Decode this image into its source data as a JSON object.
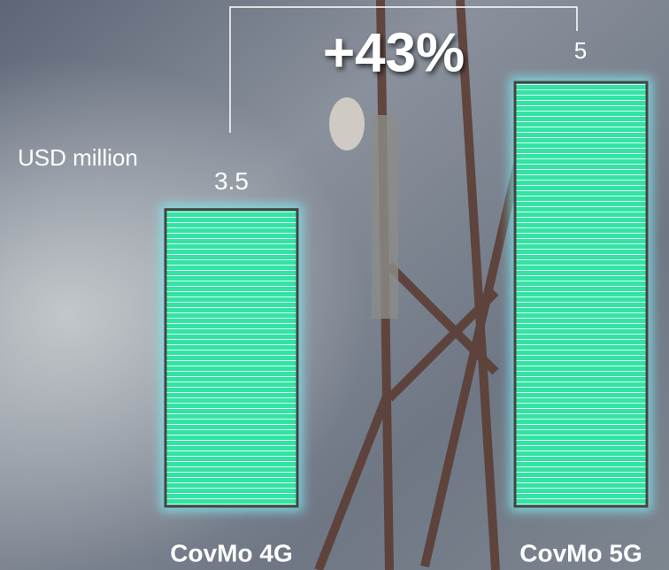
{
  "chart_data": {
    "type": "bar",
    "y_label": "USD million",
    "annotation": "+43%",
    "categories": [
      "CovMo 4G",
      "CovMo 5G"
    ],
    "values": [
      3.5,
      5
    ],
    "color": "#34e3a4"
  }
}
